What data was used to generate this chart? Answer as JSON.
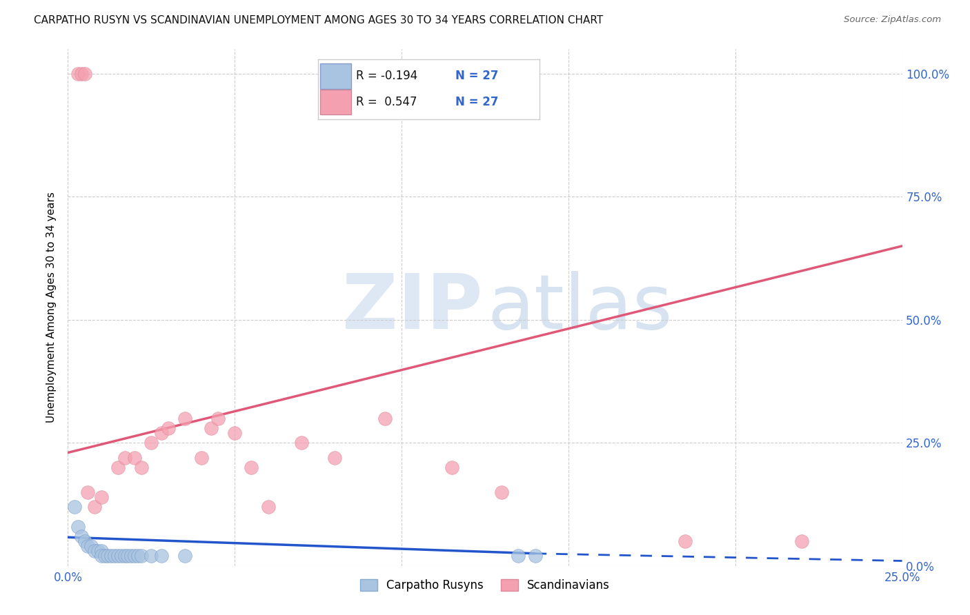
{
  "title": "CARPATHO RUSYN VS SCANDINAVIAN UNEMPLOYMENT AMONG AGES 30 TO 34 YEARS CORRELATION CHART",
  "source": "Source: ZipAtlas.com",
  "ylabel": "Unemployment Among Ages 30 to 34 years",
  "xlim": [
    0.0,
    0.25
  ],
  "ylim": [
    0.0,
    1.05
  ],
  "xticks": [
    0.0,
    0.05,
    0.1,
    0.15,
    0.2,
    0.25
  ],
  "yticks": [
    0.0,
    0.25,
    0.5,
    0.75,
    1.0
  ],
  "ytick_labels": [
    "0.0%",
    "25.0%",
    "50.0%",
    "75.0%",
    "100.0%"
  ],
  "xtick_labels": [
    "0.0%",
    "",
    "",
    "",
    "",
    "25.0%"
  ],
  "carpatho_R": -0.194,
  "carpatho_N": 27,
  "scandinavian_R": 0.547,
  "scandinavian_N": 27,
  "carpatho_color": "#a8c4e0",
  "carpatho_line_color": "#2255cc",
  "scandinavian_color": "#f4a0b0",
  "scandinavian_line_color": "#e05878",
  "carpatho_scatter_x": [
    0.002,
    0.003,
    0.004,
    0.005,
    0.006,
    0.007,
    0.008,
    0.009,
    0.01,
    0.01,
    0.011,
    0.012,
    0.013,
    0.014,
    0.015,
    0.016,
    0.017,
    0.018,
    0.019,
    0.02,
    0.021,
    0.022,
    0.025,
    0.028,
    0.035,
    0.135,
    0.14
  ],
  "carpatho_scatter_y": [
    0.12,
    0.08,
    0.06,
    0.05,
    0.04,
    0.04,
    0.03,
    0.03,
    0.03,
    0.02,
    0.02,
    0.02,
    0.02,
    0.02,
    0.02,
    0.02,
    0.02,
    0.02,
    0.02,
    0.02,
    0.02,
    0.02,
    0.02,
    0.02,
    0.02,
    0.02,
    0.02
  ],
  "scandinavian_scatter_x": [
    0.003,
    0.004,
    0.005,
    0.006,
    0.008,
    0.01,
    0.015,
    0.017,
    0.02,
    0.022,
    0.025,
    0.028,
    0.03,
    0.035,
    0.04,
    0.043,
    0.045,
    0.05,
    0.055,
    0.06,
    0.07,
    0.08,
    0.095,
    0.115,
    0.13,
    0.185,
    0.22
  ],
  "scandinavian_scatter_y": [
    1.0,
    1.0,
    1.0,
    0.15,
    0.12,
    0.14,
    0.2,
    0.22,
    0.22,
    0.2,
    0.25,
    0.27,
    0.28,
    0.3,
    0.22,
    0.28,
    0.3,
    0.27,
    0.2,
    0.12,
    0.25,
    0.22,
    0.3,
    0.2,
    0.15,
    0.05,
    0.05
  ],
  "carpatho_line_x0": 0.0,
  "carpatho_line_y0": 0.058,
  "carpatho_line_x1": 0.14,
  "carpatho_line_y1": 0.025,
  "carpatho_line_xd": 0.25,
  "carpatho_line_yd": 0.01,
  "scandinavian_line_x0": 0.0,
  "scandinavian_line_y0": 0.23,
  "scandinavian_line_x1": 0.25,
  "scandinavian_line_y1": 0.65
}
